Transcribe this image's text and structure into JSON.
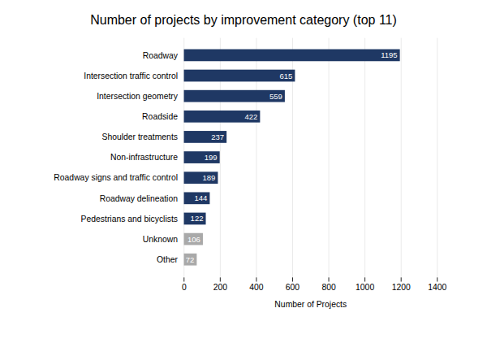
{
  "chart_data": {
    "type": "bar",
    "orientation": "horizontal",
    "title": "Number of projects by improvement category (top 11)",
    "xlabel": "Number of Projects",
    "categories": [
      "Other",
      "Unknown",
      "Pedestrians and bicyclists",
      "Roadway delineation",
      "Roadway signs and traffic control",
      "Non-infrastructure",
      "Shoulder treatments",
      "Roadside",
      "Intersection geometry",
      "Intersection traffic control",
      "Roadway"
    ],
    "values": [
      72,
      106,
      122,
      144,
      189,
      199,
      237,
      422,
      559,
      615,
      1195
    ],
    "colors": [
      "#a9a9a9",
      "#a9a9a9",
      "#1f3864",
      "#1f3864",
      "#1f3864",
      "#1f3864",
      "#1f3864",
      "#1f3864",
      "#1f3864",
      "#1f3864",
      "#1f3864"
    ],
    "xlim": [
      0,
      1400
    ],
    "xticks": [
      0,
      200,
      400,
      600,
      800,
      1000,
      1200,
      1400
    ],
    "grid": true,
    "data_labels": true
  }
}
